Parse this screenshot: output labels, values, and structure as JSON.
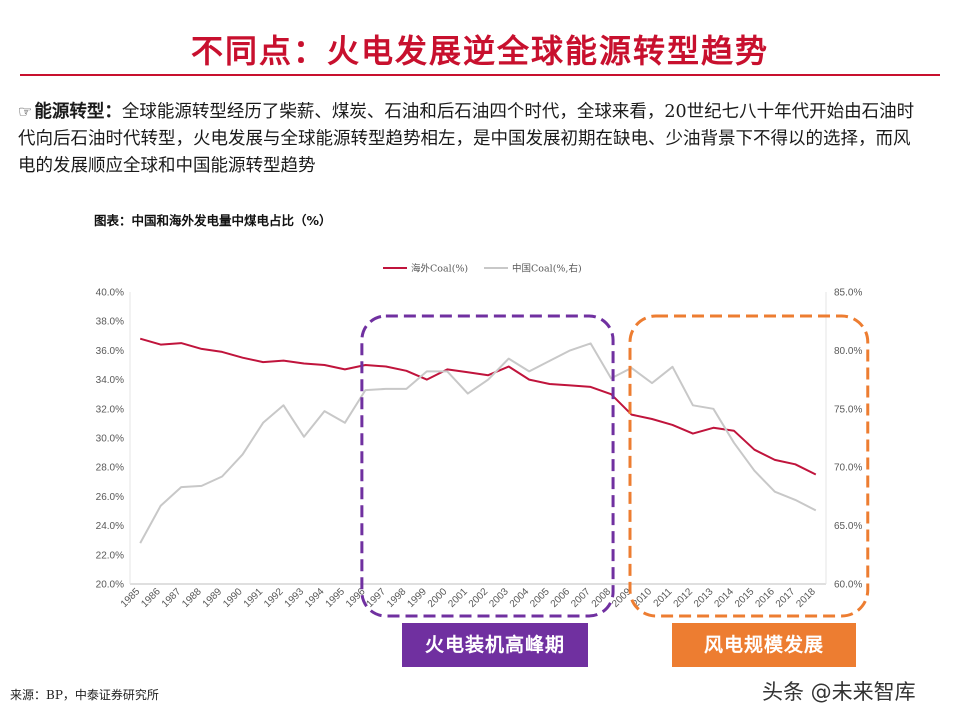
{
  "slide": {
    "title": "不同点：火电发展逆全球能源转型趋势",
    "bullet_icon": "pointing-hand-icon",
    "intro_lead": "能源转型：",
    "intro_text": "全球能源转型经历了柴薪、煤炭、石油和后石油四个时代，全球来看，20世纪七八十年代开始由石油时代向后石油时代转型，火电发展与全球能源转型趋势相左，是中国发展初期在缺电、少油背景下不得以的选择，而风电的发展顺应全球和中国能源转型趋势",
    "figure_caption": "图表：中国和海外发电量中煤电占比（%）",
    "source": "来源：BP，中泰证券研究所",
    "watermark": "头条 @未来智库",
    "colors": {
      "title": "#c8102e",
      "overseas": "#c0143c",
      "china": "#c8c8c8",
      "thermal_box": "#7030a0",
      "wind_box": "#ed7d31"
    }
  },
  "annotations": {
    "thermal_peak": {
      "label": "火电装机高峰期",
      "from_year": "1997",
      "to_year": "2008",
      "color": "#7030a0"
    },
    "wind_growth": {
      "label": "风电规模发展",
      "from_year": "2010",
      "to_year": "2018",
      "color": "#ed7d31"
    }
  },
  "chart_data": {
    "type": "line",
    "title": "",
    "x": [
      "1985",
      "1986",
      "1987",
      "1988",
      "1989",
      "1990",
      "1991",
      "1992",
      "1993",
      "1994",
      "1995",
      "1996",
      "1997",
      "1998",
      "1999",
      "2000",
      "2001",
      "2002",
      "2003",
      "2004",
      "2005",
      "2006",
      "2007",
      "2008",
      "2009",
      "2010",
      "2011",
      "2012",
      "2013",
      "2014",
      "2015",
      "2016",
      "2017",
      "2018"
    ],
    "series": [
      {
        "name": "海外Coal(%)",
        "axis": "left",
        "color": "#c0143c",
        "values": [
          36.8,
          36.4,
          36.5,
          36.1,
          35.9,
          35.5,
          35.2,
          35.3,
          35.1,
          35.0,
          34.7,
          35.0,
          34.9,
          34.6,
          34.0,
          34.7,
          34.5,
          34.3,
          34.9,
          34.0,
          33.7,
          33.6,
          33.5,
          33.0,
          31.6,
          31.3,
          30.9,
          30.3,
          30.7,
          30.5,
          29.2,
          28.5,
          28.2,
          27.5
        ]
      },
      {
        "name": "中国Coal(%,右)",
        "axis": "right",
        "color": "#c8c8c8",
        "values": [
          63.5,
          66.7,
          68.3,
          68.4,
          69.2,
          71.1,
          73.8,
          75.3,
          72.6,
          74.8,
          73.8,
          76.6,
          76.7,
          76.7,
          78.2,
          78.2,
          76.3,
          77.5,
          79.3,
          78.2,
          79.1,
          80.0,
          80.6,
          77.6,
          78.5,
          77.2,
          78.6,
          75.3,
          75.0,
          72.1,
          69.7,
          67.9,
          67.2,
          66.3
        ]
      }
    ],
    "y_left": {
      "ticks": [
        "20.0%",
        "22.0%",
        "24.0%",
        "26.0%",
        "28.0%",
        "30.0%",
        "32.0%",
        "34.0%",
        "36.0%",
        "38.0%",
        "40.0%"
      ],
      "min": 20,
      "max": 40
    },
    "y_right": {
      "ticks": [
        "60.0%",
        "65.0%",
        "70.0%",
        "75.0%",
        "80.0%",
        "85.0%"
      ],
      "min": 60,
      "max": 85
    },
    "grid": false,
    "legend_position": "top"
  }
}
